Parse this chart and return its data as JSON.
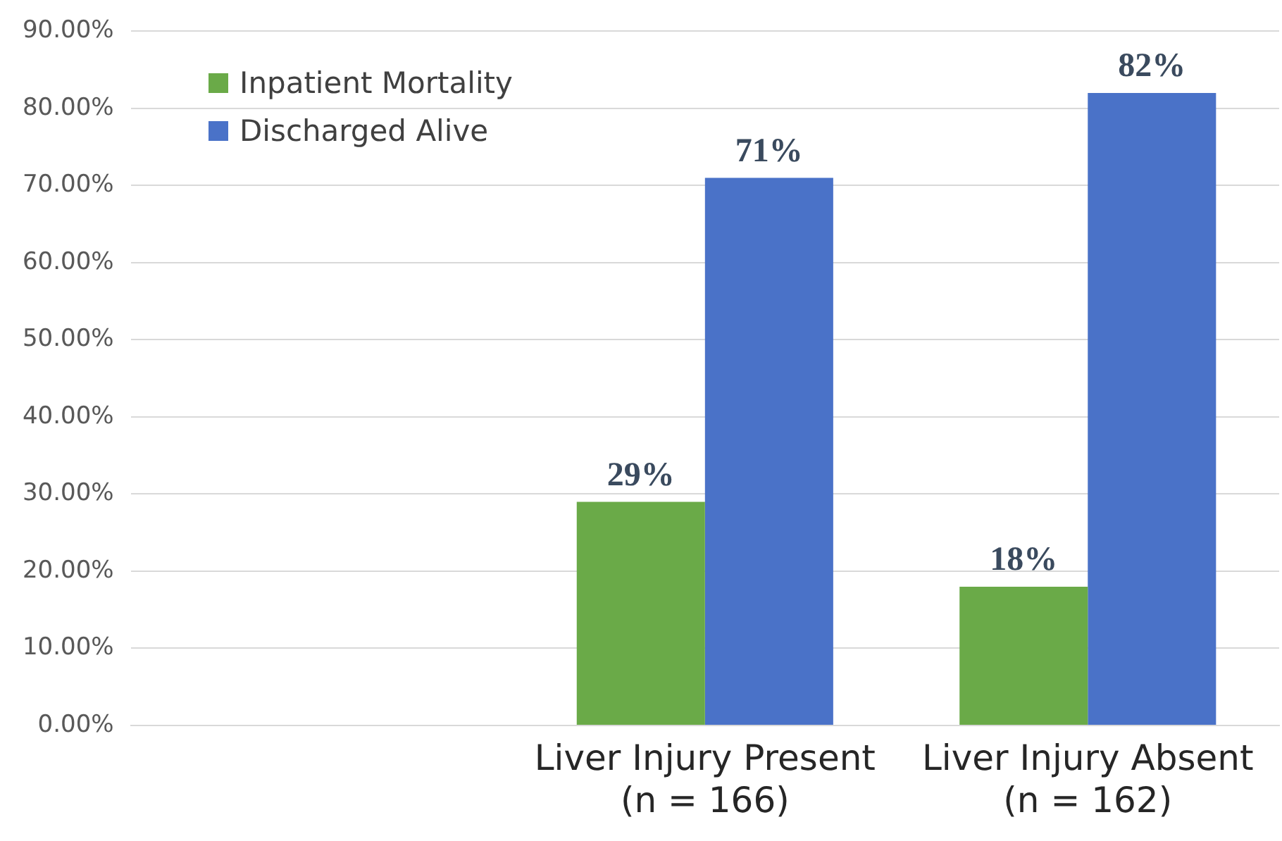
{
  "chart_data": {
    "type": "bar",
    "categories": [
      null,
      "Liver Injury Present\n(n = 166)",
      "Liver Injury Absent\n(n = 162)"
    ],
    "series": [
      {
        "name": "Inpatient Mortality",
        "color": "#6aaa48",
        "values": [
          null,
          29,
          18
        ],
        "value_labels": [
          null,
          "29%",
          "18%"
        ]
      },
      {
        "name": "Discharged Alive",
        "color": "#4a72c8",
        "values": [
          null,
          71,
          82
        ],
        "value_labels": [
          null,
          "71%",
          "82%"
        ]
      }
    ],
    "ylim": [
      0,
      90
    ],
    "yticks": [
      {
        "value": 0,
        "label": "0.00%"
      },
      {
        "value": 10,
        "label": "10.00%"
      },
      {
        "value": 20,
        "label": "20.00%"
      },
      {
        "value": 30,
        "label": "30.00%"
      },
      {
        "value": 40,
        "label": "40.00%"
      },
      {
        "value": 50,
        "label": "50.00%"
      },
      {
        "value": 60,
        "label": "60.00%"
      },
      {
        "value": 70,
        "label": "70.00%"
      },
      {
        "value": 80,
        "label": "80.00%"
      },
      {
        "value": 90,
        "label": "90.00%"
      }
    ],
    "grid": "y",
    "legend": "top left"
  }
}
